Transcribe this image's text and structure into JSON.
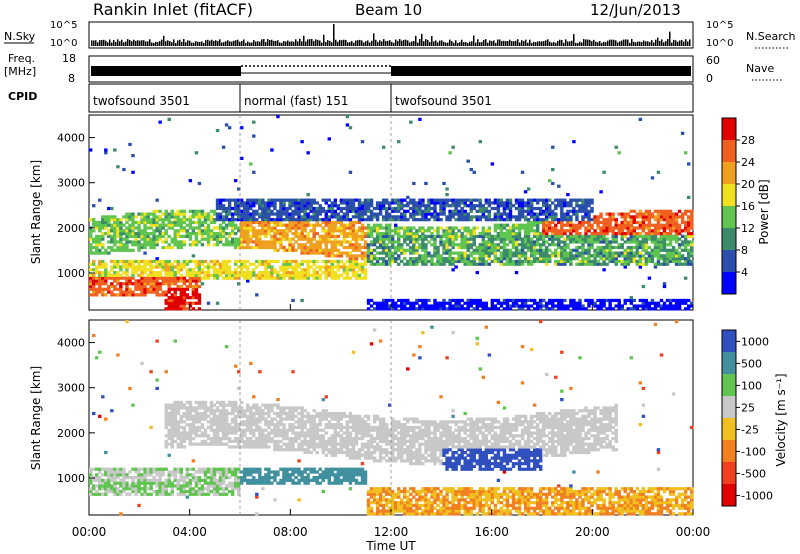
{
  "header": {
    "title": "Rankin Inlet (fitACF)",
    "beam": "Beam 10",
    "date": "12/Jun/2013"
  },
  "strip_labels": {
    "nsky": "N.Sky",
    "nsky_top": "10^5",
    "nsky_bottom": "10^0",
    "nsearch": "N.Search",
    "nsearch_top": "10^5",
    "nsearch_bottom": "10^0",
    "freq": "Freq.",
    "freq_unit": "[MHz]",
    "freq_top": "18",
    "freq_bottom": "8",
    "nave": "Nave",
    "nave_top": "60",
    "nave_bottom": "0",
    "cpid": "CPID"
  },
  "cpid_segments": [
    {
      "label": "twofsound 3501",
      "start": 0,
      "end": 6
    },
    {
      "label": "normal (fast) 151",
      "start": 6,
      "end": 12
    },
    {
      "label": "twofsound 3501",
      "start": 12,
      "end": 24
    }
  ],
  "chart_data": [
    {
      "type": "heatmap",
      "name": "power",
      "xlabel": "",
      "ylabel": "Slant Range [km]",
      "xlim": [
        0,
        24
      ],
      "ylim": [
        180,
        4500
      ],
      "yticks": [
        "1000",
        "2000",
        "3000",
        "4000"
      ],
      "colorbar_label": "Power [dB]",
      "colorbar_ticks": [
        "4",
        "8",
        "12",
        "16",
        "20",
        "24",
        "28"
      ],
      "colorbar_range": [
        0,
        32
      ],
      "colors": [
        "#0000ff",
        "#2a4faa",
        "#3d8b6a",
        "#5fc54f",
        "#f0e020",
        "#f0a020",
        "#f06020",
        "#e00000"
      ]
    },
    {
      "type": "heatmap",
      "name": "velocity",
      "xlabel": "Time UT",
      "ylabel": "Slant Range [km]",
      "xlim": [
        0,
        24
      ],
      "ylim": [
        180,
        4500
      ],
      "yticks": [
        "1000",
        "2000",
        "3000",
        "4000"
      ],
      "xticks": [
        "00:00",
        "04:00",
        "08:00",
        "12:00",
        "16:00",
        "20:00",
        "00:00"
      ],
      "colorbar_label": "Velocity [m s⁻¹]",
      "colorbar_ticks": [
        "1000",
        "500",
        "100",
        "25",
        "-25",
        "-100",
        "-500",
        "-1000"
      ],
      "colors": [
        "#3050c0",
        "#4090a0",
        "#5fc54f",
        "#c8c8c8",
        "#f0c020",
        "#f08020",
        "#f04020",
        "#e00000"
      ]
    }
  ]
}
